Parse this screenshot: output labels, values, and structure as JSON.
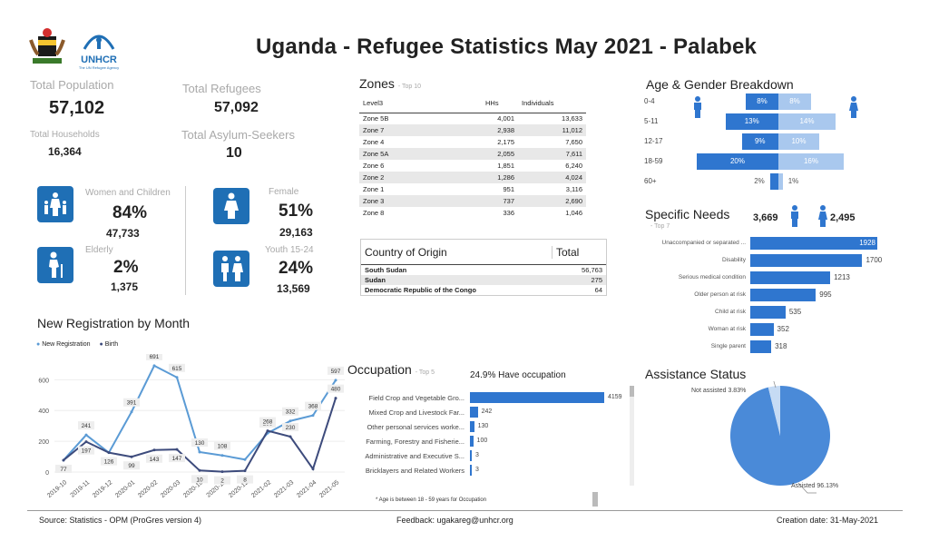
{
  "header": {
    "title": "Uganda - Refugee Statistics May 2021 - Palabek",
    "logo1": "coat-of-arms",
    "logo2_text": "UNHCR",
    "logo2_sub": "The UN Refugee Agency"
  },
  "kpis": {
    "total_population": {
      "label": "Total Population",
      "value": "57,102"
    },
    "total_refugees": {
      "label": "Total Refugees",
      "value": "57,092"
    },
    "total_households": {
      "label": "Total Households",
      "value": "16,364"
    },
    "total_asylum": {
      "label": "Total Asylum-Seekers",
      "value": "10"
    },
    "women_children": {
      "label": "Women and Children",
      "pct": "84%",
      "count": "47,733"
    },
    "female": {
      "label": "Female",
      "pct": "51%",
      "count": "29,163"
    },
    "elderly": {
      "label": "Elderly",
      "pct": "2%",
      "count": "1,375"
    },
    "youth": {
      "label": "Youth 15-24",
      "pct": "24%",
      "count": "13,569"
    }
  },
  "zones": {
    "title": "Zones",
    "subtitle": "- Top 10",
    "headers": [
      "Level3",
      "HHs",
      "Individuals"
    ],
    "rows": [
      [
        "Zone 5B",
        "4,001",
        "13,633"
      ],
      [
        "Zone 7",
        "2,938",
        "11,012"
      ],
      [
        "Zone 4",
        "2,175",
        "7,650"
      ],
      [
        "Zone 5A",
        "2,055",
        "7,611"
      ],
      [
        "Zone 6",
        "1,851",
        "6,240"
      ],
      [
        "Zone 2",
        "1,286",
        "4,024"
      ],
      [
        "Zone 1",
        "951",
        "3,116"
      ],
      [
        "Zone 3",
        "737",
        "2,690"
      ],
      [
        "Zone 8",
        "336",
        "1,046"
      ]
    ]
  },
  "origin": {
    "headers": [
      "Country of Origin",
      "Total"
    ],
    "rows": [
      [
        "South Sudan",
        "56,763"
      ],
      [
        "Sudan",
        "275"
      ],
      [
        "Democratic Republic of the Congo",
        "64"
      ]
    ]
  },
  "age_gender": {
    "title": "Age & Gender Breakdown",
    "groups": [
      "0-4",
      "5-11",
      "12-17",
      "18-59",
      "60+"
    ],
    "male": [
      8,
      13,
      9,
      20,
      2
    ],
    "female": [
      8,
      14,
      10,
      16,
      1
    ],
    "male_labels": [
      "8%",
      "13%",
      "9%",
      "20%",
      "2%"
    ],
    "female_labels": [
      "8%",
      "14%",
      "10%",
      "16%",
      "1%"
    ]
  },
  "specific_needs": {
    "title": "Specific Needs",
    "subtitle": "- Top 7",
    "male_count": "3,669",
    "female_count": "2,495",
    "items": [
      [
        "Unaccompanied or separated ...",
        "1928"
      ],
      [
        "Disability",
        "1700"
      ],
      [
        "Serious medical condition",
        "1213"
      ],
      [
        "Older person at risk",
        "995"
      ],
      [
        "Child at risk",
        "535"
      ],
      [
        "Woman at risk",
        "352"
      ],
      [
        "Single parent",
        "318"
      ]
    ],
    "values": [
      1928,
      1700,
      1213,
      995,
      535,
      352,
      318
    ]
  },
  "assistance": {
    "title": "Assistance Status",
    "not_assisted": "Not assisted 3.83%",
    "assisted": "Assisted 96.13%",
    "share": 0.9613
  },
  "occupation": {
    "title": "Occupation",
    "subtitle": "- Top 5",
    "note": "24.9% Have occupation",
    "footnote": "* Age is between 18 - 59 years for Occupation",
    "items": [
      [
        "Field Crop and Vegetable Gro...",
        "4159"
      ],
      [
        "Mixed Crop and Livestock Far...",
        "242"
      ],
      [
        "Other personal services worke...",
        "130"
      ],
      [
        "Farming, Forestry and Fisherie...",
        "100"
      ],
      [
        "Administrative and Executive S...",
        "3"
      ],
      [
        "Bricklayers and Related Workers",
        "3"
      ]
    ],
    "values": [
      4159,
      242,
      130,
      100,
      3,
      3
    ]
  },
  "chart_data": {
    "type": "line",
    "title": "New Registration by Month",
    "categories": [
      "2019-10",
      "2019-11",
      "2019-12",
      "2020-01",
      "2020-02",
      "2020-03",
      "2020-10",
      "2020-11",
      "2020-12",
      "2021-02",
      "2021-03",
      "2021-04",
      "2021-05"
    ],
    "series": [
      {
        "name": "New Registration",
        "color": "#5b9bd5",
        "values": [
          77,
          241,
          126,
          391,
          691,
          615,
          130,
          108,
          81,
          253,
          332,
          368,
          597
        ],
        "labels": [
          "",
          "241",
          "",
          "391",
          "691",
          "615",
          "130",
          "108",
          "",
          "253",
          "332",
          "368",
          "597"
        ]
      },
      {
        "name": "Birth",
        "color": "#3d4b7c",
        "values": [
          77,
          197,
          126,
          99,
          143,
          147,
          10,
          2,
          8,
          268,
          230,
          20,
          480
        ],
        "labels": [
          "77",
          "197",
          "126",
          "99",
          "143",
          "147",
          "10",
          "2",
          "8",
          "268",
          "230",
          "",
          "480"
        ]
      }
    ],
    "yticks": [
      0,
      200,
      400,
      600
    ],
    "ylim": [
      0,
      720
    ]
  },
  "footer": {
    "source": "Source: Statistics - OPM (ProGres version 4)",
    "feedback": "Feedback: ugakareg@unhcr.org",
    "date": "Creation date: 31-May-2021"
  }
}
